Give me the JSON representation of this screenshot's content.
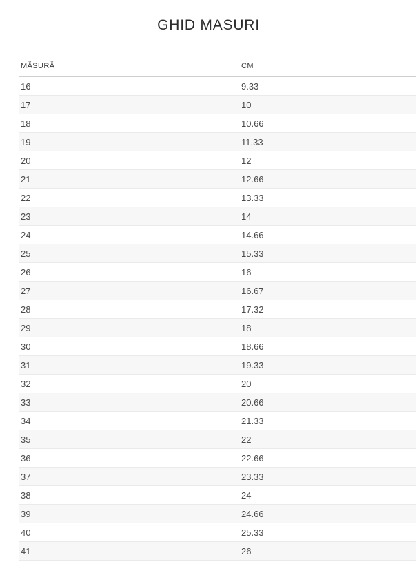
{
  "page": {
    "title": "GHID MASURI"
  },
  "size_guide": {
    "columns": [
      "MĂSURĂ",
      "CM"
    ],
    "rows": [
      {
        "size": "16",
        "cm": "9.33"
      },
      {
        "size": "17",
        "cm": "10"
      },
      {
        "size": "18",
        "cm": "10.66"
      },
      {
        "size": "19",
        "cm": "11.33"
      },
      {
        "size": "20",
        "cm": "12"
      },
      {
        "size": "21",
        "cm": "12.66"
      },
      {
        "size": "22",
        "cm": "13.33"
      },
      {
        "size": "23",
        "cm": "14"
      },
      {
        "size": "24",
        "cm": "14.66"
      },
      {
        "size": "25",
        "cm": "15.33"
      },
      {
        "size": "26",
        "cm": "16"
      },
      {
        "size": "27",
        "cm": "16.67"
      },
      {
        "size": "28",
        "cm": "17.32"
      },
      {
        "size": "29",
        "cm": "18"
      },
      {
        "size": "30",
        "cm": "18.66"
      },
      {
        "size": "31",
        "cm": "19.33"
      },
      {
        "size": "32",
        "cm": "20"
      },
      {
        "size": "33",
        "cm": "20.66"
      },
      {
        "size": "34",
        "cm": "21.33"
      },
      {
        "size": "35",
        "cm": "22"
      },
      {
        "size": "36",
        "cm": "22.66"
      },
      {
        "size": "37",
        "cm": "23.33"
      },
      {
        "size": "38",
        "cm": "24"
      },
      {
        "size": "39",
        "cm": "24.66"
      },
      {
        "size": "40",
        "cm": "25.33"
      },
      {
        "size": "41",
        "cm": "26"
      }
    ]
  },
  "colors": {
    "background": "#ffffff",
    "stripe_row": "#f7f7f7",
    "row_border": "#eaeaea",
    "header_border": "#cfcfcf",
    "cell_text": "#4a4a4a",
    "header_text": "#3c3c3c",
    "title_text": "#2d2d2d"
  }
}
